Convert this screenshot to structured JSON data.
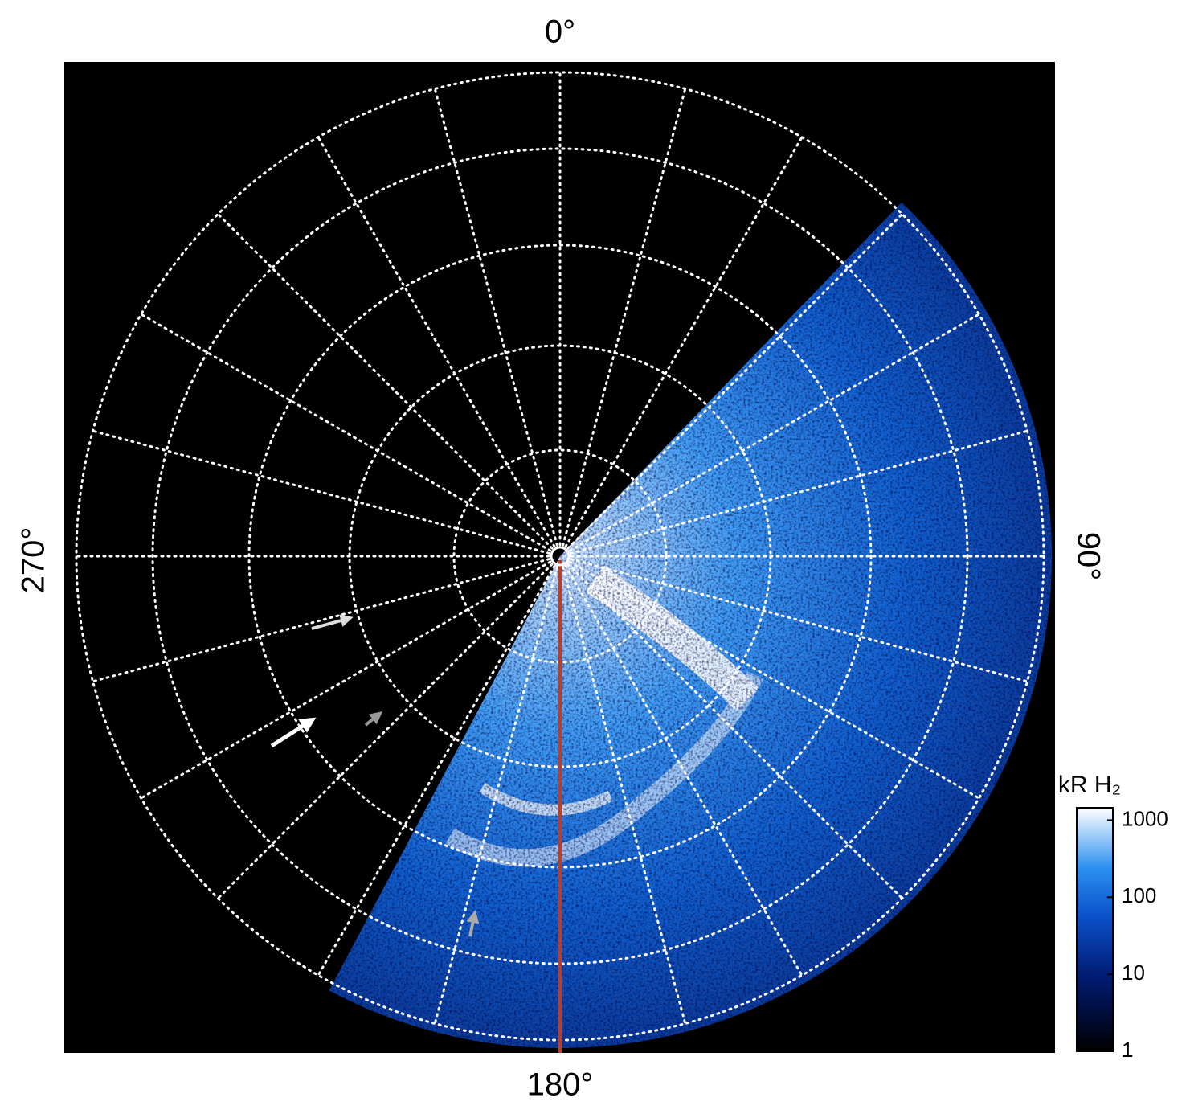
{
  "figure": {
    "labels": {
      "top": "0°",
      "right": "90°",
      "bottom": "180°",
      "left": "270°"
    },
    "colorbar": {
      "title": "kR H₂",
      "scale": "log",
      "lim": [
        1,
        1450
      ],
      "ticks": [
        1,
        10,
        100,
        1000
      ]
    }
  }
}
